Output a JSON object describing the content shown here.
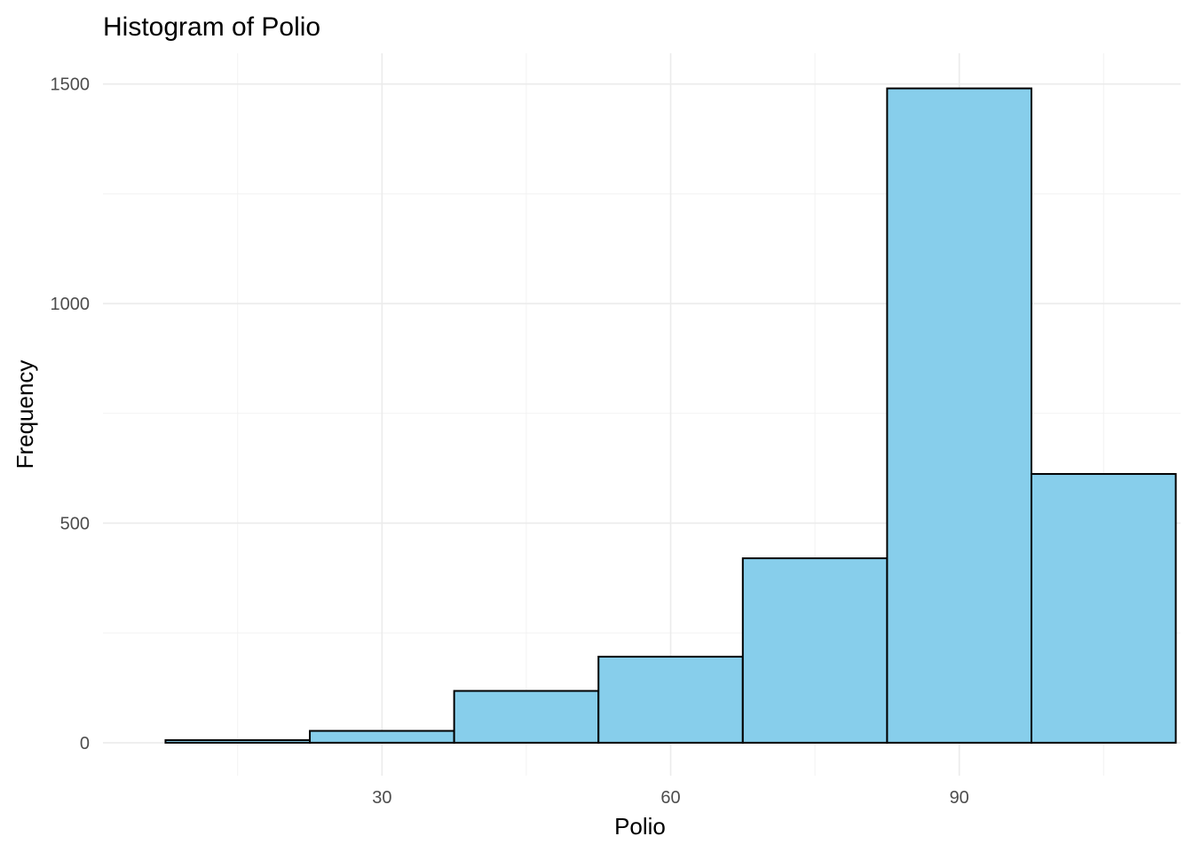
{
  "chart_data": {
    "type": "bar",
    "title": "Histogram of Polio",
    "xlabel": "Polio",
    "ylabel": "Frequency",
    "bar_color": "#87CEEB",
    "bar_outline": "#000000",
    "grid": true,
    "bins": [
      {
        "x0": 7.5,
        "x1": 22.5,
        "count": 6
      },
      {
        "x0": 22.5,
        "x1": 37.5,
        "count": 27
      },
      {
        "x0": 37.5,
        "x1": 52.5,
        "count": 118
      },
      {
        "x0": 52.5,
        "x1": 67.5,
        "count": 196
      },
      {
        "x0": 67.5,
        "x1": 82.5,
        "count": 420
      },
      {
        "x0": 82.5,
        "x1": 97.5,
        "count": 1490
      },
      {
        "x0": 97.5,
        "x1": 112.5,
        "count": 612
      }
    ],
    "xlim": [
      1,
      113
    ],
    "ylim": [
      -75,
      1570
    ],
    "x_ticks": [
      30,
      60,
      90
    ],
    "x_tick_labels": [
      "30",
      "60",
      "90"
    ],
    "x_minor_ticks": [
      15,
      45,
      75,
      105
    ],
    "y_ticks": [
      0,
      500,
      1000,
      1500
    ],
    "y_tick_labels": [
      "0",
      "500",
      "1000",
      "1500"
    ],
    "y_minor_ticks": [
      250,
      750,
      1250
    ]
  }
}
